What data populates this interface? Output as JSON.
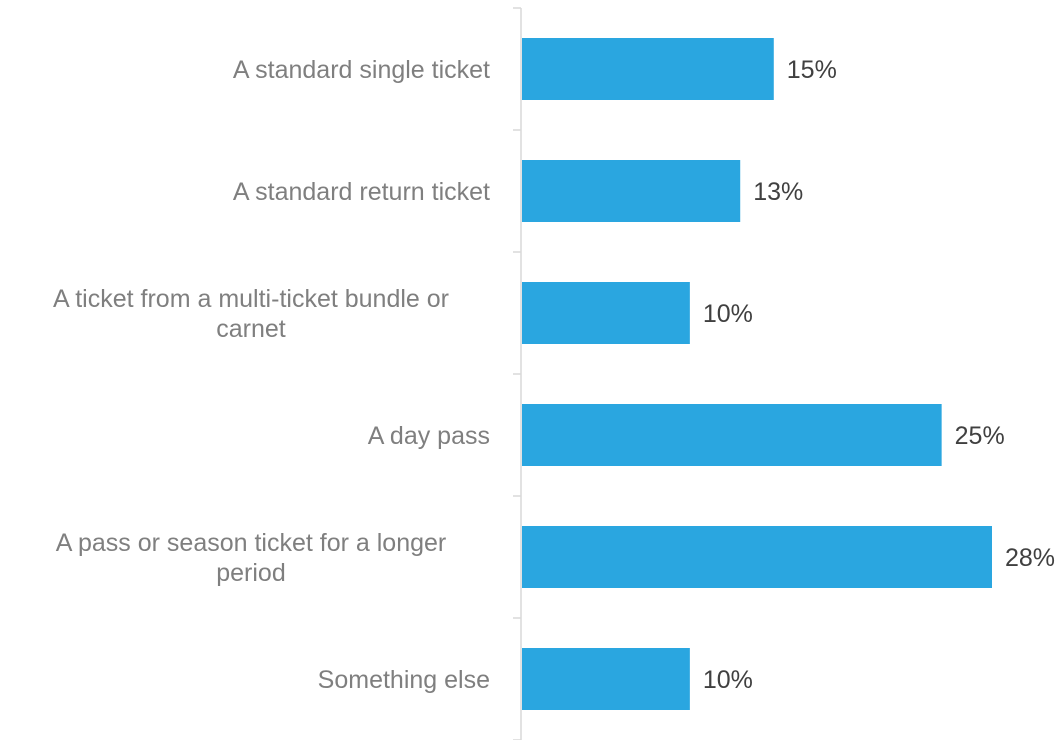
{
  "chart_data": {
    "type": "bar",
    "orientation": "horizontal",
    "categories": [
      [
        "A standard single ticket"
      ],
      [
        "A standard return ticket"
      ],
      [
        "A ticket from a multi-ticket bundle or",
        "carnet"
      ],
      [
        "A day pass"
      ],
      [
        "A pass or season ticket for a longer",
        "period"
      ],
      [
        "Something else"
      ]
    ],
    "values": [
      15,
      13,
      10,
      25,
      28,
      10
    ],
    "value_labels": [
      "15%",
      "13%",
      "10%",
      "25%",
      "28%",
      "10%"
    ],
    "title": "",
    "xlabel": "",
    "ylabel": "",
    "xlim": [
      0,
      30
    ],
    "grid": false,
    "legend": "none",
    "colors": {
      "bar": "#2aa6e0"
    }
  }
}
